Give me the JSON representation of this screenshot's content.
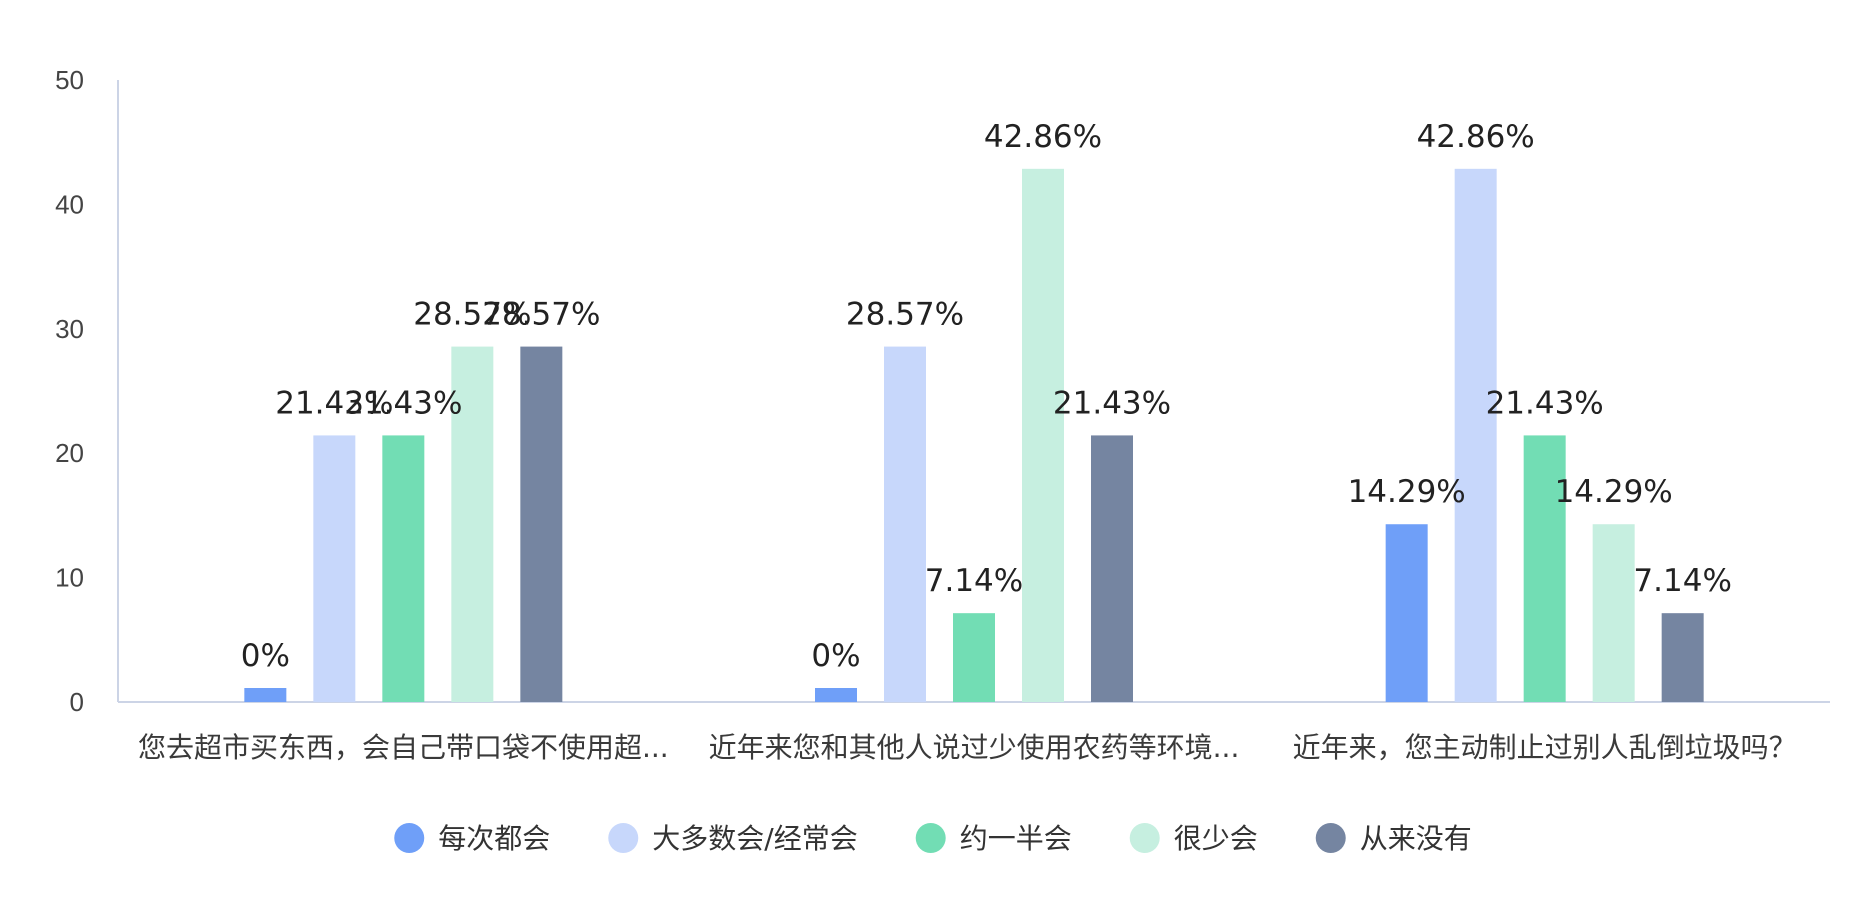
{
  "chart_data": {
    "type": "bar",
    "categories": [
      "您去超市买东西，会自己带口袋不使用超...",
      "近年来您和其他人说过少使用农药等环境...",
      "近年来，您主动制止过别人乱倒垃圾吗？"
    ],
    "series": [
      {
        "name": "每次都会",
        "color": "#6f9ff8",
        "values": [
          0,
          0,
          14.29
        ],
        "labels": [
          "0%",
          "0%",
          "14.29%"
        ]
      },
      {
        "name": "大多数会/经常会",
        "color": "#c7d7fb",
        "values": [
          21.43,
          28.57,
          42.86
        ],
        "labels": [
          "21.43%",
          "28.57%",
          "42.86%"
        ]
      },
      {
        "name": "约一半会",
        "color": "#72ddb4",
        "values": [
          21.43,
          7.14,
          21.43
        ],
        "labels": [
          "21.43%",
          "7.14%",
          "21.43%"
        ]
      },
      {
        "name": "很少会",
        "color": "#c6efe0",
        "values": [
          28.57,
          42.86,
          14.29
        ],
        "labels": [
          "28.57%",
          "42.86%",
          "14.29%"
        ]
      },
      {
        "name": "从来没有",
        "color": "#7585a1",
        "values": [
          28.57,
          21.43,
          7.14
        ],
        "labels": [
          "28.57%",
          "21.43%",
          "7.14%"
        ]
      }
    ],
    "ylim": [
      0,
      50
    ],
    "yticks": [
      0,
      10,
      20,
      30,
      40,
      50
    ],
    "grid": false,
    "legend_position": "bottom"
  }
}
